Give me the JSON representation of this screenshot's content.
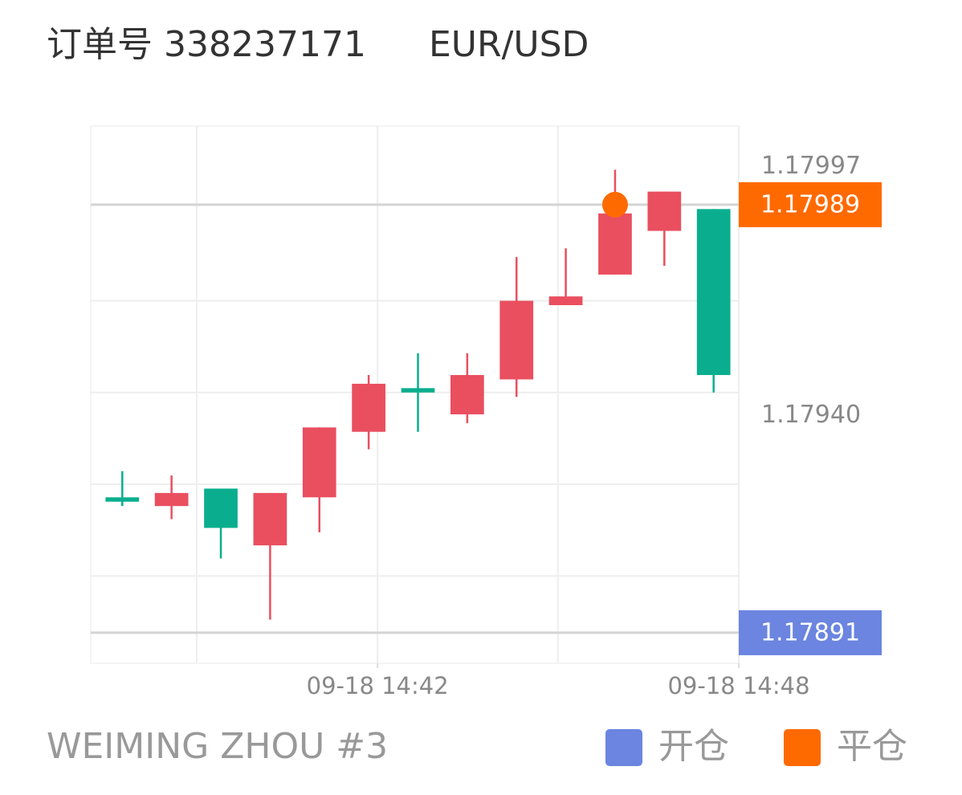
{
  "header": {
    "order_label": "订单号 338237171",
    "symbol": "EUR/USD"
  },
  "chart_data": {
    "type": "candlestick",
    "categories": [
      null,
      null,
      null,
      null,
      null,
      null,
      null,
      null,
      null,
      null,
      null,
      null,
      null
    ],
    "open": [
      1.17922,
      1.1792,
      1.17924,
      1.17911,
      1.17922,
      1.17937,
      1.17947,
      1.17941,
      1.17949,
      1.17966,
      1.17973,
      1.17983,
      1.17988
    ],
    "high": [
      1.17928,
      1.17927,
      1.17924,
      1.17923,
      1.17938,
      1.1795,
      1.17955,
      1.17955,
      1.17977,
      1.17979,
      1.17997,
      1.17992,
      1.17988
    ],
    "low": [
      1.1792,
      1.17917,
      1.17908,
      1.17894,
      1.17914,
      1.17933,
      1.17937,
      1.17939,
      1.17945,
      1.17966,
      1.17973,
      1.17975,
      1.17946
    ],
    "close": [
      1.17921,
      1.17923,
      1.17915,
      1.17923,
      1.17938,
      1.17948,
      1.17946,
      1.1795,
      1.17967,
      1.17968,
      1.17987,
      1.17992,
      1.1795
    ],
    "up_color": "#e94f5f",
    "down_color": "#0aae8e",
    "xlim": [
      -0.64,
      12.51
    ],
    "xticks": [
      {
        "value": 5.18,
        "label": "09-18 14:42"
      },
      {
        "value": 12.51,
        "label": "09-18 14:48"
      }
    ],
    "xgrid": [
      1.51,
      5.18,
      8.84,
      12.51
    ],
    "ylim": [
      1.17884,
      1.18007
    ],
    "yticks": [
      1.17997,
      {
        "value": 1.1794,
        "label": "1.17940"
      }
    ],
    "ygrid": [
      1.17967,
      1.17946,
      1.17925,
      1.17904
    ],
    "grid": true,
    "levels": [
      {
        "name": "开仓",
        "color": "#6b85e0",
        "value": 1.17891
      },
      {
        "name": "平仓",
        "color": "#ff6a00",
        "value": 1.17989
      }
    ],
    "exit_index": 10
  },
  "footer": {
    "account": "WEIMING ZHOU #3"
  }
}
